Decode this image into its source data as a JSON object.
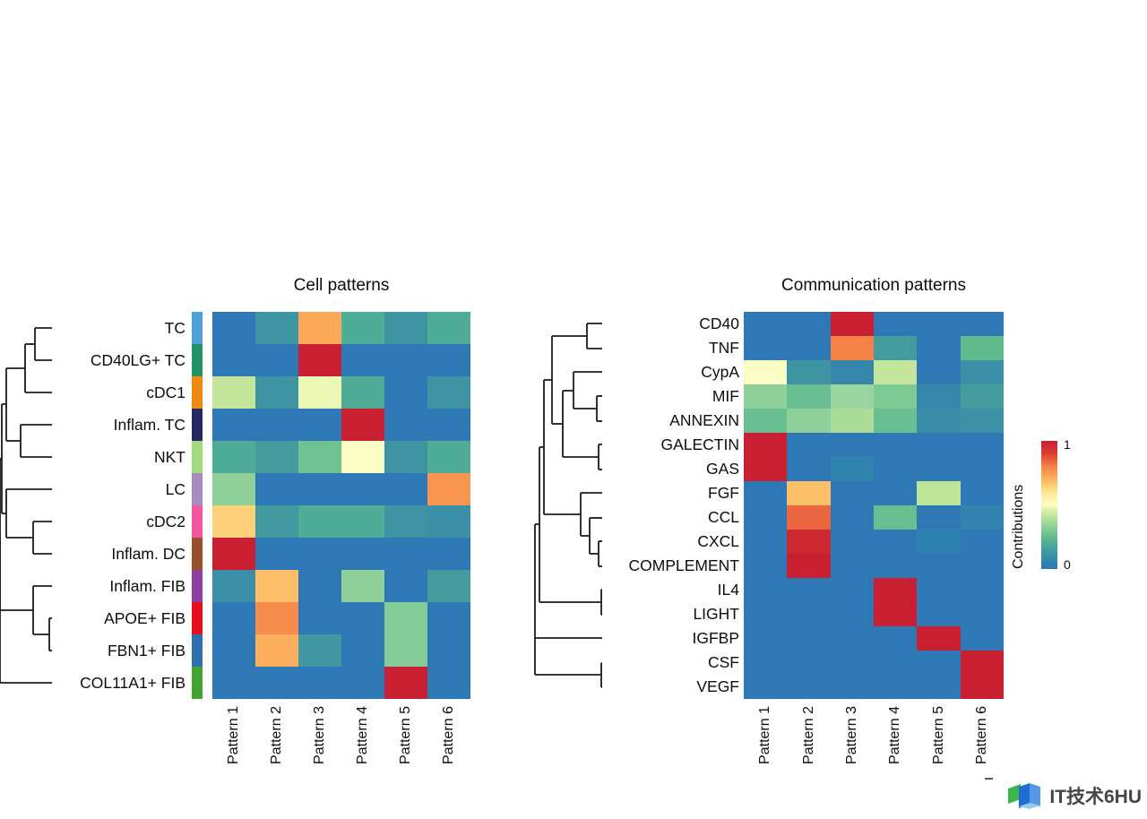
{
  "chart_data": [
    {
      "type": "heatmap",
      "title": "Cell patterns",
      "rows": [
        "TC",
        "CD40LG+ TC",
        "cDC1",
        "Inflam. TC",
        "NKT",
        "LC",
        "cDC2",
        "Inflam. DC",
        "Inflam. FIB",
        "APOE+ FIB",
        "FBN1+ FIB",
        "COL11A1+ FIB"
      ],
      "row_annotation_colors": [
        "#4FA0DB",
        "#229268",
        "#F08A10",
        "#23295F",
        "#A2DB7D",
        "#A88CC0",
        "#F2579F",
        "#99502A",
        "#8F3F9E",
        "#E4111C",
        "#2E6FAE",
        "#42A32F"
      ],
      "columns": [
        "Pattern 1",
        "Pattern 2",
        "Pattern 3",
        "Pattern 4",
        "Pattern 5",
        "Pattern 6"
      ],
      "values": [
        [
          0.0,
          0.12,
          0.72,
          0.2,
          0.12,
          0.2
        ],
        [
          0.0,
          0.0,
          1.0,
          0.0,
          0.0,
          0.0
        ],
        [
          0.42,
          0.12,
          0.48,
          0.2,
          0.0,
          0.12
        ],
        [
          0.0,
          0.0,
          0.0,
          1.0,
          0.0,
          0.0
        ],
        [
          0.2,
          0.15,
          0.27,
          0.5,
          0.12,
          0.2
        ],
        [
          0.33,
          0.0,
          0.0,
          0.0,
          0.0,
          0.76
        ],
        [
          0.64,
          0.14,
          0.2,
          0.2,
          0.12,
          0.1
        ],
        [
          1.0,
          0.0,
          0.0,
          0.0,
          0.0,
          0.0
        ],
        [
          0.1,
          0.68,
          0.0,
          0.33,
          0.0,
          0.15
        ],
        [
          0.0,
          0.78,
          0.0,
          0.0,
          0.31,
          0.0
        ],
        [
          0.0,
          0.71,
          0.13,
          0.0,
          0.31,
          0.0
        ],
        [
          0.0,
          0.0,
          0.0,
          0.0,
          1.0,
          0.0
        ]
      ],
      "value_range": [
        0,
        1
      ],
      "row_dendrogram": true
    },
    {
      "type": "heatmap",
      "title": "Communication patterns",
      "rows": [
        "CD40",
        "TNF",
        "CypA",
        "MIF",
        "ANNEXIN",
        "GALECTIN",
        "GAS",
        "FGF",
        "CCL",
        "CXCL",
        "COMPLEMENT",
        "IL4",
        "LIGHT",
        "IGFBP",
        "CSF",
        "VEGF"
      ],
      "columns": [
        "Pattern 1",
        "Pattern 2",
        "Pattern 3",
        "Pattern 4",
        "Pattern 5",
        "Pattern 6"
      ],
      "values": [
        [
          0.0,
          0.0,
          1.0,
          0.0,
          0.0,
          0.0
        ],
        [
          0.0,
          0.0,
          0.8,
          0.15,
          0.0,
          0.25
        ],
        [
          0.5,
          0.12,
          0.07,
          0.42,
          0.0,
          0.1
        ],
        [
          0.33,
          0.26,
          0.35,
          0.3,
          0.07,
          0.15
        ],
        [
          0.26,
          0.33,
          0.38,
          0.26,
          0.09,
          0.11
        ],
        [
          1.0,
          0.0,
          0.0,
          0.0,
          0.0,
          0.0
        ],
        [
          1.0,
          0.0,
          0.06,
          0.0,
          0.0,
          0.0
        ],
        [
          0.0,
          0.68,
          0.0,
          0.0,
          0.41,
          0.0
        ],
        [
          0.0,
          0.84,
          0.0,
          0.26,
          0.0,
          0.06
        ],
        [
          0.0,
          0.97,
          0.0,
          0.0,
          0.05,
          0.0
        ],
        [
          0.0,
          1.0,
          0.0,
          0.0,
          0.0,
          0.0
        ],
        [
          0.0,
          0.0,
          0.0,
          1.0,
          0.0,
          0.0
        ],
        [
          0.0,
          0.0,
          0.0,
          1.0,
          0.0,
          0.0
        ],
        [
          0.0,
          0.0,
          0.0,
          0.0,
          1.0,
          0.0
        ],
        [
          0.0,
          0.0,
          0.0,
          0.0,
          0.0,
          1.0
        ],
        [
          0.0,
          0.0,
          0.0,
          0.0,
          0.0,
          1.0
        ]
      ],
      "value_range": [
        0,
        1
      ],
      "row_dendrogram": true
    }
  ],
  "legend": {
    "title": "Contributions",
    "max_label": "1",
    "min_label": "0"
  },
  "colormap": {
    "stops": [
      [
        0.0,
        "#2E78B5"
      ],
      [
        0.05,
        "#2F81AF"
      ],
      [
        0.1,
        "#3B8FA6"
      ],
      [
        0.15,
        "#459C9F"
      ],
      [
        0.2,
        "#4FAC97"
      ],
      [
        0.25,
        "#62BB8F"
      ],
      [
        0.3,
        "#7FC995"
      ],
      [
        0.35,
        "#9AD49E"
      ],
      [
        0.4,
        "#B8E198"
      ],
      [
        0.45,
        "#D6EEA1"
      ],
      [
        0.5,
        "#FCFEC5"
      ],
      [
        0.6,
        "#FEE590"
      ],
      [
        0.7,
        "#FCB45F"
      ],
      [
        0.8,
        "#F58247"
      ],
      [
        0.9,
        "#DC3F34"
      ],
      [
        1.0,
        "#C82032"
      ]
    ]
  },
  "dendrograms": {
    "left": {
      "segments": [
        [
          39,
          366,
          58,
          366
        ],
        [
          39,
          402,
          58,
          402
        ],
        [
          39,
          366,
          39,
          402
        ],
        [
          28,
          384,
          39,
          384
        ],
        [
          28,
          438,
          58,
          438
        ],
        [
          28,
          384,
          28,
          438
        ],
        [
          7,
          411,
          28,
          411
        ],
        [
          23,
          474,
          58,
          474
        ],
        [
          23,
          510,
          58,
          510
        ],
        [
          23,
          474,
          23,
          510
        ],
        [
          7,
          492,
          23,
          492
        ],
        [
          7,
          411,
          7,
          492
        ],
        [
          2,
          451,
          7,
          451
        ],
        [
          7,
          546,
          58,
          546
        ],
        [
          37,
          582,
          58,
          582
        ],
        [
          37,
          618,
          58,
          618
        ],
        [
          37,
          582,
          37,
          618
        ],
        [
          7,
          600,
          37,
          600
        ],
        [
          7,
          546,
          7,
          600
        ],
        [
          2,
          573,
          7,
          573
        ],
        [
          2,
          451,
          2,
          573
        ],
        [
          0,
          512,
          2,
          512
        ],
        [
          37,
          654,
          58,
          654
        ],
        [
          55,
          690,
          58,
          690
        ],
        [
          55,
          726,
          58,
          726
        ],
        [
          55,
          690,
          55,
          726
        ],
        [
          37,
          708,
          55,
          708
        ],
        [
          37,
          654,
          37,
          708
        ],
        [
          0,
          681,
          37,
          681
        ],
        [
          0,
          512,
          0,
          681
        ],
        [
          0,
          762,
          58,
          762
        ],
        [
          0,
          596,
          0,
          762
        ]
      ]
    },
    "right": {
      "segments": [
        [
          655,
          361,
          672,
          361
        ],
        [
          655,
          389,
          672,
          389
        ],
        [
          655,
          361,
          655,
          389
        ],
        [
          616,
          375,
          655,
          375
        ],
        [
          640,
          415,
          672,
          415
        ],
        [
          666,
          442,
          672,
          442
        ],
        [
          666,
          470,
          672,
          470
        ],
        [
          666,
          442,
          666,
          470
        ],
        [
          640,
          456,
          666,
          456
        ],
        [
          640,
          415,
          640,
          456
        ],
        [
          628,
          436,
          640,
          436
        ],
        [
          668,
          496,
          672,
          496
        ],
        [
          668,
          524,
          672,
          524
        ],
        [
          668,
          496,
          668,
          524
        ],
        [
          628,
          510,
          668,
          510
        ],
        [
          628,
          436,
          628,
          510
        ],
        [
          616,
          473,
          628,
          473
        ],
        [
          616,
          375,
          616,
          473
        ],
        [
          607,
          424,
          616,
          424
        ],
        [
          648,
          550,
          672,
          550
        ],
        [
          658,
          578,
          672,
          578
        ],
        [
          668,
          604,
          672,
          604
        ],
        [
          668,
          632,
          672,
          632
        ],
        [
          668,
          604,
          668,
          632
        ],
        [
          658,
          618,
          668,
          618
        ],
        [
          658,
          578,
          658,
          618
        ],
        [
          648,
          598,
          658,
          598
        ],
        [
          648,
          550,
          648,
          598
        ],
        [
          607,
          574,
          648,
          574
        ],
        [
          607,
          424,
          607,
          574
        ],
        [
          602,
          499,
          607,
          499
        ],
        [
          671,
          658,
          672,
          658
        ],
        [
          671,
          686,
          672,
          686
        ],
        [
          671,
          658,
          671,
          686
        ],
        [
          602,
          672,
          671,
          672
        ],
        [
          602,
          499,
          602,
          672
        ],
        [
          597,
          585,
          602,
          585
        ],
        [
          597,
          712,
          672,
          712
        ],
        [
          671,
          740,
          672,
          740
        ],
        [
          671,
          767,
          672,
          767
        ],
        [
          671,
          740,
          671,
          767
        ],
        [
          597,
          753,
          671,
          753
        ],
        [
          597,
          585,
          597,
          753
        ]
      ]
    }
  },
  "watermark": {
    "text": "IT技术6HU"
  }
}
